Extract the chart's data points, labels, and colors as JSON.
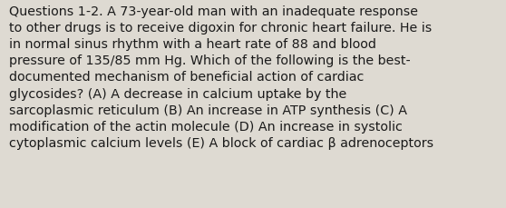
{
  "lines": [
    "Questions 1-2. A 73-year-old man with an inadequate response",
    "to other drugs is to receive digoxin for chronic heart failure. He is",
    "in normal sinus rhythm with a heart rate of 88 and blood",
    "pressure of 135/85 mm Hg. Which of the following is the best-",
    "documented mechanism of beneficial action of cardiac",
    "glycosides? (A) A decrease in calcium uptake by the",
    "sarcoplasmic reticulum (B) An increase in ATP synthesis (C) A",
    "modification of the actin molecule (D) An increase in systolic",
    "cytoplasmic calcium levels (E) A block of cardiac β adrenoceptors"
  ],
  "background_color": "#dedad2",
  "text_color": "#1a1a1a",
  "font_size": 10.3,
  "font_family": "DejaVu Sans",
  "fig_width": 5.58,
  "fig_height": 2.3,
  "dpi": 100
}
